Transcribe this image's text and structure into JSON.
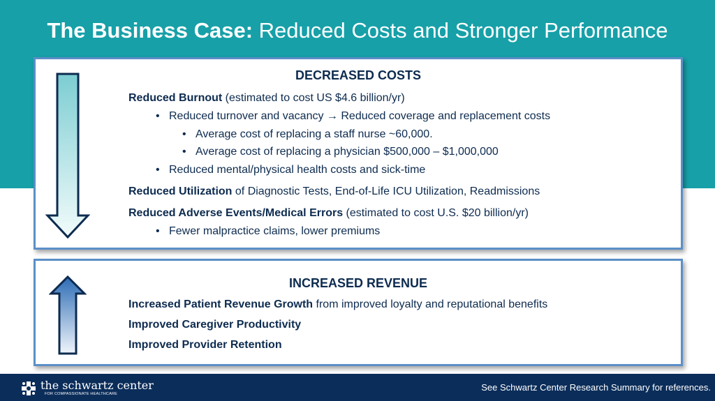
{
  "title": {
    "bold": "The Business Case:",
    "rest": "Reduced Costs and Stronger Performance"
  },
  "decreased": {
    "heading": "DECREASED COSTS",
    "items": [
      {
        "bold": "Reduced Burnout",
        "text": " (estimated to cost US $4.6 billion/yr)"
      },
      {
        "text_before": "Reduced turnover and vacancy ",
        "arrow": "→",
        "text_after": " Reduced coverage and replacement costs"
      },
      {
        "text": "Average cost of replacing a staff nurse ~60,000."
      },
      {
        "text": "Average cost of replacing a physician $500,000 – $1,000,000"
      },
      {
        "text": "Reduced mental/physical health costs and sick-time"
      },
      {
        "bold": "Reduced Utilization",
        "text": " of Diagnostic Tests, End-of-Life ICU Utilization, Readmissions"
      },
      {
        "bold": "Reduced Adverse Events/Medical Errors",
        "text": " (estimated to cost U.S. $20 billion/yr)"
      },
      {
        "text": "Fewer malpractice claims, lower premiums"
      }
    ]
  },
  "increased": {
    "heading": "INCREASED REVENUE",
    "items": [
      {
        "bold": "Increased Patient Revenue Growth",
        "text": " from improved loyalty and reputational benefits"
      },
      {
        "bold": "Improved Caregiver Productivity"
      },
      {
        "bold": "Improved Provider Retention"
      }
    ]
  },
  "footer": {
    "logo_name": "the schwartz center",
    "logo_tagline": "FOR COMPASSIONATE HEALTHCARE",
    "note": "See Schwartz Center Research Summary for references."
  },
  "colors": {
    "teal_band": "#17a0a8",
    "navy_text": "#0d2b4f",
    "box_border": "#5b8fc7",
    "footer_bg": "#0b2d5a",
    "down_arrow_fill": "#7ccdd2",
    "up_arrow_fill": "#2d6cb5"
  },
  "icons": {
    "down_arrow": "down-arrow-icon",
    "up_arrow": "up-arrow-icon",
    "logo": "schwartz-logo-icon"
  }
}
